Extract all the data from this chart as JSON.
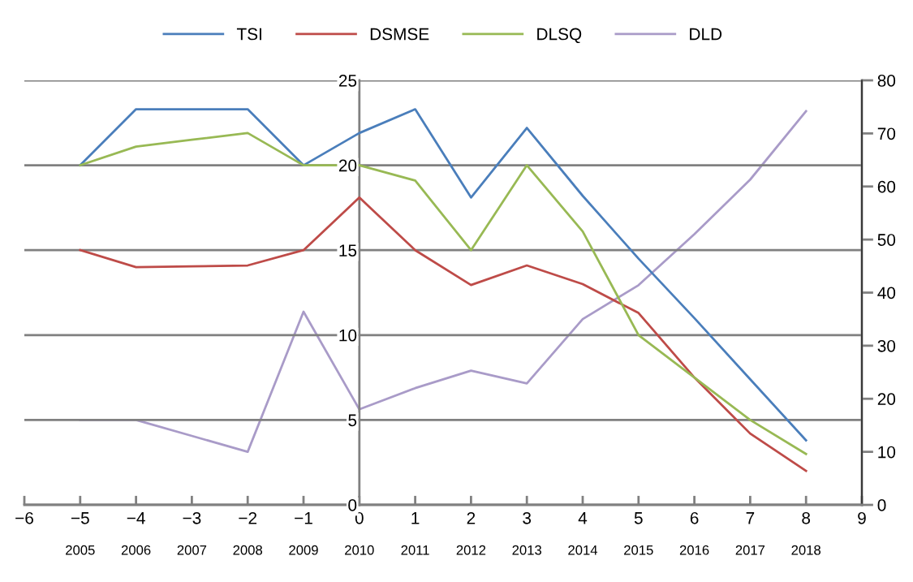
{
  "chart_data": {
    "type": "line",
    "x": [
      -5,
      -4,
      -3,
      -2,
      -1,
      0,
      1,
      2,
      3,
      4,
      5,
      6,
      7,
      8
    ],
    "series": [
      {
        "name": "TSI",
        "color": "#4a7ebb",
        "values": [
          20,
          23.3,
          23.3,
          23.3,
          20,
          21.9,
          23.3,
          18.1,
          22.2,
          18.2,
          14.5,
          11.0,
          7.4,
          3.8
        ]
      },
      {
        "name": "DSMSE",
        "color": "#be4b48",
        "values": [
          15,
          14.0,
          14.05,
          14.1,
          15,
          18.1,
          15,
          12.95,
          14.1,
          13,
          11.3,
          7.5,
          4.2,
          2.0
        ]
      },
      {
        "name": "DLSQ",
        "color": "#98b954",
        "values": [
          20,
          21.1,
          21.5,
          21.9,
          20,
          20,
          19.1,
          15,
          20,
          16.1,
          10,
          7.5,
          5,
          3
        ]
      },
      {
        "name": "DLD",
        "color": "#a99bc8",
        "axis": "y2",
        "values": [
          16,
          16,
          13,
          10,
          36.4,
          18,
          22,
          25.3,
          22.9,
          35,
          41.4,
          51,
          61.3,
          74.2
        ]
      }
    ],
    "xlim": [
      -6,
      9
    ],
    "xticks": [
      {
        "value": -6,
        "label": "−6"
      },
      {
        "value": -5,
        "label": "−5"
      },
      {
        "value": -4,
        "label": "−4"
      },
      {
        "value": -3,
        "label": "−3"
      },
      {
        "value": -2,
        "label": "−2"
      },
      {
        "value": -1,
        "label": "−1"
      },
      0,
      1,
      2,
      3,
      4,
      5,
      6,
      7,
      8,
      9
    ],
    "x2lim": [
      2004,
      2019
    ],
    "x2ticks": [
      2005,
      2006,
      2007,
      2008,
      2009,
      2010,
      2011,
      2012,
      2013,
      2014,
      2015,
      2016,
      2017,
      2018
    ],
    "ylim": [
      0,
      25
    ],
    "yticks": [
      0,
      5,
      10,
      15,
      20,
      25
    ],
    "y2lim": [
      0,
      80
    ],
    "y2ticks": [
      0,
      10,
      20,
      30,
      40,
      50,
      60,
      70,
      80
    ],
    "grid": "y",
    "legend": "top",
    "marker": "none",
    "line_style": "solid"
  }
}
